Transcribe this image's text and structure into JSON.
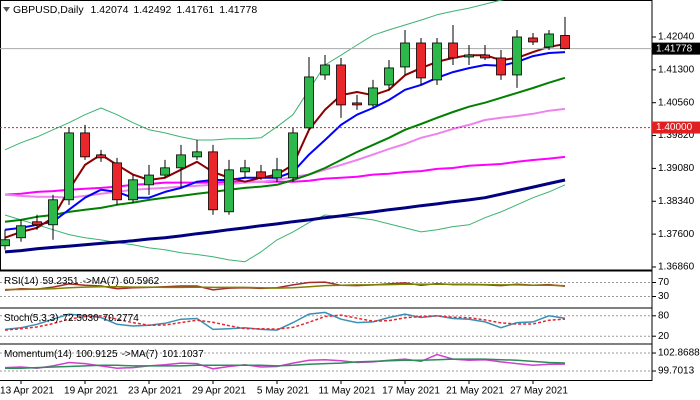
{
  "chart_data": [
    {
      "type": "candlestick",
      "title": "GBPUSD,Daily",
      "categories": [
        null,
        "13 Apr 2021",
        null,
        null,
        null,
        "19 Apr 2021",
        null,
        null,
        null,
        "23 Apr 2021",
        null,
        null,
        null,
        "29 Apr 2021",
        null,
        null,
        null,
        "5 May 2021",
        null,
        null,
        null,
        "11 May 2021",
        null,
        null,
        null,
        "17 May 2021",
        null,
        null,
        null,
        "21 May 2021",
        null,
        null,
        null,
        "27 May 2021",
        null,
        null
      ],
      "open": [
        1.37338,
        1.37518,
        1.37878,
        1.3781,
        1.38373,
        1.3988,
        1.39385,
        1.39205,
        1.38373,
        1.3871,
        1.3893,
        1.39093,
        1.3934,
        1.39453,
        1.38103,
        1.39003,
        1.39003,
        1.38868,
        1.38868,
        1.39993,
        1.41185,
        1.4141,
        1.40555,
        1.4051,
        1.4096,
        1.41365,
        1.41905,
        1.41073,
        1.41905,
        1.4159,
        1.41635,
        1.41568,
        1.41185,
        1.42018,
        1.41815,
        1.42074
      ],
      "high": [
        1.37698,
        1.37923,
        1.38035,
        1.38485,
        1.39993,
        1.4006,
        1.39498,
        1.39318,
        1.3893,
        1.3916,
        1.39273,
        1.3961,
        1.39723,
        1.3961,
        1.39273,
        1.39273,
        1.3916,
        1.39318,
        1.39993,
        1.4159,
        1.41635,
        1.41568,
        1.40735,
        1.41073,
        1.41523,
        1.42198,
        1.42018,
        1.42018,
        1.4231,
        1.4186,
        1.4186,
        1.41748,
        1.42198,
        1.4213,
        1.42198,
        1.42492
      ],
      "low": [
        1.37248,
        1.37428,
        1.37698,
        1.37473,
        1.3826,
        1.39273,
        1.39228,
        1.3826,
        1.38305,
        1.38485,
        1.38868,
        1.38643,
        1.39273,
        1.38035,
        1.38035,
        1.38868,
        1.38823,
        1.38778,
        1.38778,
        1.39948,
        1.41073,
        1.40218,
        1.40398,
        1.40443,
        1.40848,
        1.41185,
        1.4096,
        1.4096,
        1.4141,
        1.4141,
        1.41523,
        1.41073,
        1.40893,
        1.4186,
        1.41748,
        1.41761
      ],
      "close": [
        1.37473,
        1.37788,
        1.3781,
        1.38373,
        1.3988,
        1.3934,
        1.39318,
        1.38373,
        1.38823,
        1.3893,
        1.39093,
        1.39385,
        1.39453,
        1.38148,
        1.39048,
        1.39093,
        1.38868,
        1.39048,
        1.3988,
        1.4114,
        1.4141,
        1.4051,
        1.4051,
        1.40893,
        1.41343,
        1.41905,
        1.41118,
        1.41905,
        1.41568,
        1.41635,
        1.41568,
        1.41185,
        1.4204,
        1.41928,
        1.42108,
        1.41778
      ],
      "up_color": "#2db84b",
      "down_color": "#e8262b",
      "series": [
        {
          "color": "#3cb371",
          "values": [
            1.395,
            1.3966,
            1.3979,
            1.3995,
            1.4011,
            1.4029,
            1.4044,
            1.4029,
            1.4011,
            1.3995,
            1.3988,
            1.3979,
            1.3972,
            1.3972,
            1.3975,
            1.3975,
            1.3977,
            1.4002,
            1.4029,
            1.4085,
            1.4141,
            1.4163,
            1.4186,
            1.4208,
            1.422,
            1.4231,
            1.4242,
            1.4254,
            1.4262,
            1.4269,
            1.4278,
            1.4287,
            1.4294,
            1.4299,
            1.4305,
            1.431
          ]
        },
        {
          "color": "#3cb371",
          "values": [
            1.3803,
            1.3792,
            1.3781,
            1.377,
            1.3759,
            1.3752,
            1.3747,
            1.3741,
            1.3736,
            1.3729,
            1.3725,
            1.3718,
            1.3714,
            1.3709,
            1.3702,
            1.3698,
            1.372,
            1.3747,
            1.3765,
            1.3786,
            1.3803,
            1.3799,
            1.3797,
            1.3792,
            1.3783,
            1.3774,
            1.3765,
            1.377,
            1.3777,
            1.3781,
            1.3797,
            1.381,
            1.3826,
            1.3842,
            1.3855,
            1.3871
          ]
        },
        {
          "color": "#000080",
          "values": [
            1.372,
            1.3723,
            1.3727,
            1.373,
            1.3733,
            1.3736,
            1.3739,
            1.3742,
            1.3745,
            1.3749,
            1.3752,
            1.3756,
            1.3761,
            1.3765,
            1.377,
            1.3774,
            1.3779,
            1.3783,
            1.3788,
            1.3792,
            1.3797,
            1.3801,
            1.3806,
            1.381,
            1.3815,
            1.3819,
            1.3824,
            1.3828,
            1.3833,
            1.3837,
            1.3842,
            1.385,
            1.3858,
            1.3866,
            1.3874,
            1.3882
          ]
        },
        {
          "color": "#ff00ff",
          "values": [
            1.3849,
            1.3851,
            1.3855,
            1.3857,
            1.386,
            1.3862,
            1.3864,
            1.3867,
            1.3871,
            1.3873,
            1.3876,
            1.3876,
            1.3876,
            1.3876,
            1.3878,
            1.3878,
            1.3878,
            1.3878,
            1.3878,
            1.388,
            1.3885,
            1.3887,
            1.3889,
            1.3894,
            1.3896,
            1.39,
            1.3902,
            1.3907,
            1.3909,
            1.3914,
            1.3916,
            1.3918,
            1.3923,
            1.3927,
            1.393,
            1.3934
          ]
        },
        {
          "color": "#ee82ee",
          "values": [
            1.3849,
            1.3846,
            1.3844,
            1.3844,
            1.3842,
            1.3846,
            1.3851,
            1.3855,
            1.386,
            1.3862,
            1.3864,
            1.3867,
            1.3869,
            1.3871,
            1.3873,
            1.3876,
            1.3878,
            1.3882,
            1.3889,
            1.3894,
            1.3905,
            1.3916,
            1.3927,
            1.3939,
            1.3952,
            1.3963,
            1.3977,
            1.3986,
            1.3997,
            1.4006,
            1.4017,
            1.4022,
            1.4026,
            1.4031,
            1.4038,
            1.4042
          ]
        },
        {
          "color": "#008000",
          "values": [
            1.3788,
            1.3792,
            1.3799,
            1.3803,
            1.381,
            1.3815,
            1.3819,
            1.3826,
            1.3831,
            1.3837,
            1.3842,
            1.3846,
            1.3851,
            1.3855,
            1.386,
            1.3864,
            1.3867,
            1.3871,
            1.3882,
            1.3894,
            1.3909,
            1.3927,
            1.3945,
            1.3961,
            1.3977,
            1.3995,
            1.4008,
            1.4022,
            1.4035,
            1.4047,
            1.4056,
            1.4067,
            1.4078,
            1.4089,
            1.4101,
            1.4112
          ]
        },
        {
          "color": "#0000ff",
          "values": [
            1.377,
            1.3774,
            1.3781,
            1.3788,
            1.3815,
            1.3842,
            1.386,
            1.3855,
            1.3842,
            1.3842,
            1.3855,
            1.3864,
            1.3878,
            1.3882,
            1.3882,
            1.3887,
            1.3887,
            1.3887,
            1.39,
            1.3939,
            1.3972,
            1.4006,
            1.4029,
            1.4044,
            1.4062,
            1.4085,
            1.4096,
            1.4112,
            1.4125,
            1.4134,
            1.4141,
            1.4139,
            1.4148,
            1.4161,
            1.4168,
            1.417
          ]
        },
        {
          "color": "#8b0000",
          "values": [
            1.3752,
            1.3765,
            1.3774,
            1.3797,
            1.386,
            1.3916,
            1.3939,
            1.3916,
            1.3894,
            1.3882,
            1.3887,
            1.3905,
            1.3923,
            1.39,
            1.3887,
            1.3878,
            1.3887,
            1.3894,
            1.3916,
            1.3995,
            1.404,
            1.4073,
            1.408,
            1.4073,
            1.4085,
            1.4118,
            1.4134,
            1.4148,
            1.4157,
            1.4163,
            1.4163,
            1.4152,
            1.4157,
            1.417,
            1.4182,
            1.4188
          ]
        }
      ],
      "ylim": [
        1.36792,
        1.42873
      ],
      "yticks": [
        {
          "value": 1.4204,
          "label": "1.42040"
        },
        {
          "value": 1.413,
          "label": "1.41300"
        },
        {
          "value": 1.4056,
          "label": "1.40560"
        },
        {
          "value": 1.3982,
          "label": "1.39820"
        },
        {
          "value": 1.3908,
          "label": "1.39080"
        },
        {
          "value": 1.3834,
          "label": "1.38340"
        },
        {
          "value": 1.376,
          "label": "1.37600"
        },
        {
          "value": 1.3686,
          "label": "1.36860"
        }
      ],
      "level_line": {
        "value": 1.4,
        "label": "1.40000",
        "color": "#e02020"
      }
    },
    {
      "type": "line",
      "series": [
        {
          "name": "RSI(14)",
          "color": "#a52a2a",
          "values": [
            48,
            52,
            51,
            57,
            66,
            62,
            60,
            52,
            55,
            56,
            58,
            60,
            60,
            49,
            54,
            55,
            53,
            55,
            63,
            70,
            71,
            62,
            61,
            63,
            66,
            69,
            62,
            67,
            64,
            64,
            63,
            61,
            65,
            62,
            64,
            59.2351
          ]
        },
        {
          "name": "->MA(7)",
          "color": "#808000",
          "values": [
            50,
            50,
            51,
            52,
            55,
            57,
            58,
            58,
            57,
            57,
            56,
            56,
            57,
            56,
            56,
            56,
            55,
            54,
            55,
            58,
            61,
            62,
            63,
            63,
            64,
            65,
            65,
            65,
            65,
            65,
            64,
            63,
            63,
            62,
            62,
            60.5962
          ]
        }
      ],
      "ylim": [
        0,
        100
      ],
      "yticks": [
        70,
        30
      ],
      "grid": true
    },
    {
      "type": "line",
      "series": [
        {
          "name": "Stoch(5,3,3)",
          "color": "#3a8fb7",
          "values": [
            40,
            45,
            55,
            70,
            85,
            80,
            75,
            55,
            50,
            52,
            58,
            70,
            72,
            40,
            42,
            45,
            40,
            38,
            60,
            85,
            90,
            70,
            60,
            62,
            75,
            85,
            75,
            80,
            72,
            70,
            62,
            45,
            60,
            62,
            80,
            72.503
          ],
          "value_labels": [
            null,
            null,
            null,
            null,
            null,
            null,
            null,
            null,
            null,
            null,
            null,
            null,
            null,
            null,
            null,
            null,
            null,
            null,
            null,
            null,
            null,
            null,
            null,
            null,
            null,
            null,
            null,
            null,
            null,
            null,
            null,
            null,
            null,
            null,
            null,
            "72.5030"
          ]
        },
        {
          "color": "#e8262b",
          "dashed": true,
          "values": [
            38,
            42,
            47,
            57,
            70,
            78,
            80,
            70,
            60,
            52,
            53,
            60,
            67,
            61,
            51,
            42,
            42,
            41,
            46,
            61,
            78,
            82,
            73,
            64,
            66,
            74,
            78,
            80,
            76,
            74,
            68,
            59,
            56,
            56,
            67,
            70.2774
          ]
        }
      ],
      "ylim": [
        0,
        100
      ],
      "yticks": [
        80,
        20
      ],
      "grid": true
    },
    {
      "type": "line",
      "series": [
        {
          "name": "Momentum(14)",
          "color": "#d040d0",
          "values": [
            100.3,
            100.4,
            100.2,
            100.6,
            101.2,
            101.0,
            100.6,
            100.2,
            100.3,
            100.6,
            100.8,
            101.1,
            101.0,
            100.1,
            100.5,
            100.8,
            100.4,
            100.5,
            101.1,
            101.6,
            101.7,
            101.5,
            101.2,
            101.3,
            101.6,
            101.8,
            101.4,
            102.6,
            101.8,
            101.6,
            101.7,
            101.3,
            101.0,
            100.7,
            100.9,
            100.9125
          ]
        },
        {
          "name": "->MA(7)",
          "color": "#2e8b57",
          "values": [
            100.2,
            100.2,
            100.3,
            100.4,
            100.5,
            100.6,
            100.7,
            100.7,
            100.6,
            100.6,
            100.6,
            100.6,
            100.7,
            100.7,
            100.7,
            100.7,
            100.7,
            100.6,
            100.7,
            100.9,
            101.0,
            101.1,
            101.3,
            101.4,
            101.5,
            101.6,
            101.6,
            101.7,
            101.8,
            101.8,
            101.8,
            101.7,
            101.6,
            101.4,
            101.2,
            101.1037
          ]
        }
      ],
      "ylim": [
        98.12,
        104.28
      ],
      "yticks": [
        102.8688,
        99.7013
      ],
      "grid": true
    }
  ]
}
